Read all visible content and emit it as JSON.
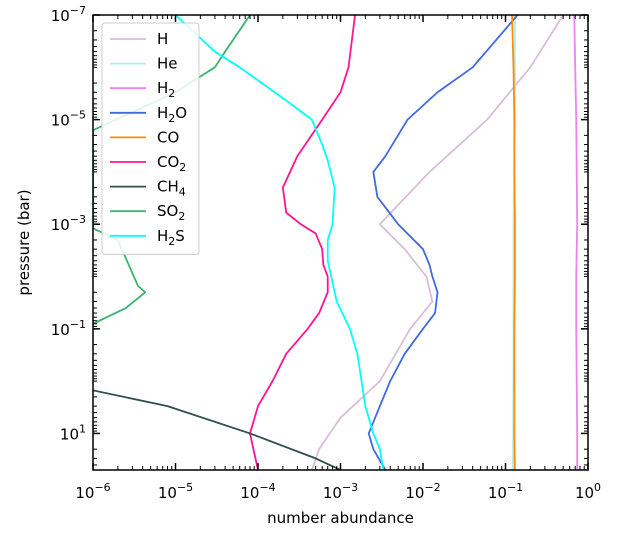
{
  "chart_data": {
    "type": "line",
    "title": "",
    "xlabel": "number abundance",
    "ylabel": "pressure (bar)",
    "xscale": "log",
    "yscale": "log",
    "y_inverted": true,
    "xlim": [
      1e-06,
      1
    ],
    "ylim": [
      50,
      1e-07
    ],
    "grid": false,
    "legend_position": "top-left",
    "x_ticks": [
      {
        "value": 1e-06,
        "base": "10",
        "exp": "−6"
      },
      {
        "value": 1e-05,
        "base": "10",
        "exp": "−5"
      },
      {
        "value": 0.0001,
        "base": "10",
        "exp": "−4"
      },
      {
        "value": 0.001,
        "base": "10",
        "exp": "−3"
      },
      {
        "value": 0.01,
        "base": "10",
        "exp": "−2"
      },
      {
        "value": 0.1,
        "base": "10",
        "exp": "−1"
      },
      {
        "value": 1,
        "base": "10",
        "exp": "0"
      }
    ],
    "y_ticks": [
      {
        "value": 1e-07,
        "base": "10",
        "exp": "−7"
      },
      {
        "value": 1e-05,
        "base": "10",
        "exp": "−5"
      },
      {
        "value": 0.001,
        "base": "10",
        "exp": "−3"
      },
      {
        "value": 0.1,
        "base": "10",
        "exp": "−1"
      },
      {
        "value": 10,
        "base": "10",
        "exp": "1"
      }
    ],
    "series": [
      {
        "name": "H",
        "label": {
          "main": "H",
          "sub": ""
        },
        "color": "#d8bfd8",
        "points": [
          [
            0.5,
            1e-07
          ],
          [
            0.2,
            1e-06
          ],
          [
            0.06,
            1e-05
          ],
          [
            0.012,
            0.0001
          ],
          [
            0.003,
            0.001
          ],
          [
            0.006,
            0.003
          ],
          [
            0.011,
            0.01
          ],
          [
            0.013,
            0.03
          ],
          [
            0.007,
            0.1
          ],
          [
            0.003,
            1
          ],
          [
            0.001,
            5
          ],
          [
            0.00055,
            20
          ],
          [
            0.00045,
            50
          ]
        ]
      },
      {
        "name": "He",
        "label": {
          "main": "He",
          "sub": ""
        },
        "color": "#afeeee",
        "points": [
          [
            0.13,
            1e-07
          ],
          [
            0.13,
            1e-05
          ],
          [
            0.125,
            0.001
          ],
          [
            0.125,
            0.1
          ],
          [
            0.124,
            10
          ],
          [
            0.123,
            50
          ]
        ]
      },
      {
        "name": "H2",
        "label": {
          "main": "H",
          "sub": "2"
        },
        "color": "#ee82ee",
        "points": [
          [
            0.68,
            1e-07
          ],
          [
            0.7,
            1e-06
          ],
          [
            0.72,
            1e-05
          ],
          [
            0.73,
            0.0001
          ],
          [
            0.74,
            0.001
          ],
          [
            0.72,
            0.01
          ],
          [
            0.72,
            0.1
          ],
          [
            0.73,
            1
          ],
          [
            0.74,
            10
          ],
          [
            0.74,
            50
          ]
        ]
      },
      {
        "name": "H2O",
        "label": {
          "main": "H",
          "sub": "2",
          "tail": "O"
        },
        "color": "#4169e1",
        "points": [
          [
            0.14,
            1e-07
          ],
          [
            0.04,
            1e-06
          ],
          [
            0.015,
            3e-06
          ],
          [
            0.0065,
            1e-05
          ],
          [
            0.0035,
            5e-05
          ],
          [
            0.0025,
            0.0001
          ],
          [
            0.0028,
            0.0003
          ],
          [
            0.005,
            0.001
          ],
          [
            0.01,
            0.003
          ],
          [
            0.012,
            0.006
          ],
          [
            0.013,
            0.01
          ],
          [
            0.015,
            0.02
          ],
          [
            0.014,
            0.05
          ],
          [
            0.01,
            0.1
          ],
          [
            0.006,
            0.3
          ],
          [
            0.004,
            1
          ],
          [
            0.003,
            3
          ],
          [
            0.0022,
            10
          ],
          [
            0.0025,
            20
          ],
          [
            0.0035,
            50
          ]
        ]
      },
      {
        "name": "CO",
        "label": {
          "main": "CO",
          "sub": ""
        },
        "color": "#ff8c00",
        "points": [
          [
            0.12,
            1e-07
          ],
          [
            0.125,
            1e-06
          ],
          [
            0.128,
            1e-05
          ],
          [
            0.128,
            0.0001
          ],
          [
            0.13,
            0.001
          ],
          [
            0.13,
            0.01
          ],
          [
            0.128,
            0.1
          ],
          [
            0.128,
            1
          ],
          [
            0.128,
            10
          ],
          [
            0.13,
            50
          ]
        ]
      },
      {
        "name": "CO2",
        "label": {
          "main": "CO",
          "sub": "2"
        },
        "color": "#ff1493",
        "points": [
          [
            0.0015,
            1e-07
          ],
          [
            0.00125,
            1e-06
          ],
          [
            0.001,
            3e-06
          ],
          [
            0.0006,
            1e-05
          ],
          [
            0.0003,
            5e-05
          ],
          [
            0.0002,
            0.0002
          ],
          [
            0.00022,
            0.0006
          ],
          [
            0.00033,
            0.001
          ],
          [
            0.0005,
            0.0015
          ],
          [
            0.0006,
            0.003
          ],
          [
            0.00062,
            0.006
          ],
          [
            0.0007,
            0.01
          ],
          [
            0.0007,
            0.02
          ],
          [
            0.00055,
            0.05
          ],
          [
            0.0004,
            0.1
          ],
          [
            0.00022,
            0.3
          ],
          [
            0.00015,
            1
          ],
          [
            0.0001,
            3
          ],
          [
            8e-05,
            10
          ],
          [
            0.0001,
            50
          ]
        ]
      },
      {
        "name": "CH4",
        "label": {
          "main": "CH",
          "sub": "4"
        },
        "color": "#2f4f4f",
        "points": [
          [
            1e-06,
            1.5
          ],
          [
            8e-06,
            3
          ],
          [
            8e-05,
            10
          ],
          [
            0.0005,
            30
          ],
          [
            0.001,
            50
          ]
        ]
      },
      {
        "name": "SO2",
        "label": {
          "main": "SO",
          "sub": "2"
        },
        "color": "#3cb371",
        "points": [
          [
            8e-05,
            1e-07
          ],
          [
            4e-05,
            5e-07
          ],
          [
            3e-05,
            1e-06
          ],
          [
            1e-05,
            3e-06
          ],
          [
            1e-06,
            1.6e-05
          ],
          [
            1e-06,
            0.0012
          ],
          [
            2e-06,
            0.002
          ],
          [
            3.5e-06,
            0.015
          ],
          [
            4.3e-06,
            0.02
          ],
          [
            2.5e-06,
            0.04
          ],
          [
            1e-06,
            0.08
          ]
        ]
      },
      {
        "name": "H2S",
        "label": {
          "main": "H",
          "sub": "2",
          "tail": "S"
        },
        "color": "#00ffff",
        "points": [
          [
            1e-05,
            1e-07
          ],
          [
            3e-05,
            5e-07
          ],
          [
            6e-05,
            1e-06
          ],
          [
            0.00025,
            5e-06
          ],
          [
            0.00045,
            1e-05
          ],
          [
            0.0006,
            3e-05
          ],
          [
            0.0007,
            6e-05
          ],
          [
            0.00085,
            0.0002
          ],
          [
            0.0008,
            0.001
          ],
          [
            0.0007,
            0.002
          ],
          [
            0.0007,
            0.005
          ],
          [
            0.0009,
            0.03
          ],
          [
            0.0013,
            0.1
          ],
          [
            0.0016,
            0.3
          ],
          [
            0.0018,
            1
          ],
          [
            0.002,
            3
          ],
          [
            0.0025,
            10
          ],
          [
            0.003,
            20
          ],
          [
            0.0033,
            50
          ]
        ]
      }
    ]
  }
}
